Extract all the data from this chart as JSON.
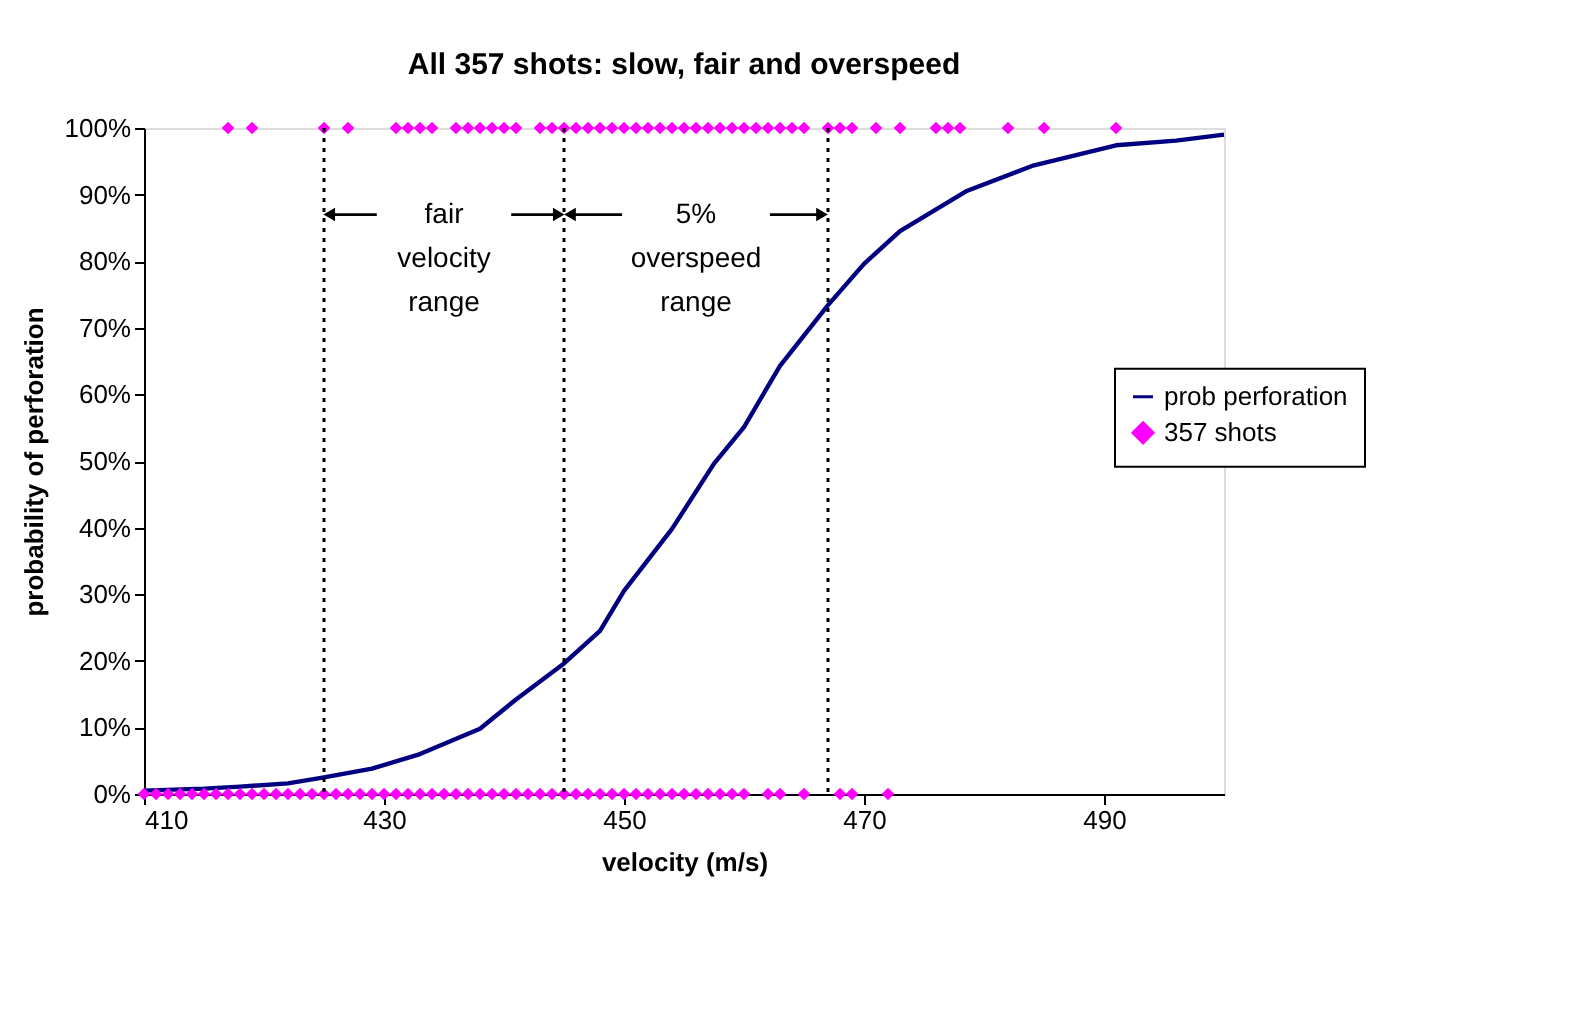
{
  "chart_data": {
    "type": "line",
    "title": "All 357 shots: slow, fair and overspeed",
    "xlabel": "velocity (m/s)",
    "ylabel": "probability of perforation",
    "xlim": [
      410,
      500
    ],
    "xticks": [
      410,
      430,
      450,
      470,
      490
    ],
    "ylim": [
      0,
      100
    ],
    "yticks": [
      {
        "value": 0,
        "label": "0%"
      },
      {
        "value": 10,
        "label": "10%"
      },
      {
        "value": 20,
        "label": "20%"
      },
      {
        "value": 30,
        "label": "30%"
      },
      {
        "value": 40,
        "label": "40%"
      },
      {
        "value": 50,
        "label": "50%"
      },
      {
        "value": 60,
        "label": "60%"
      },
      {
        "value": 70,
        "label": "70%"
      },
      {
        "value": 80,
        "label": "80%"
      },
      {
        "value": 90,
        "label": "90%"
      },
      {
        "value": 100,
        "label": "100%"
      }
    ],
    "grid": false,
    "legend": "right",
    "series": [
      {
        "name": "prob perforation",
        "color": "#000080",
        "marker": "none",
        "line_style": "solid",
        "x": [
          410,
          415,
          418,
          422,
          425,
          429,
          433,
          438,
          441,
          445,
          448,
          450,
          454,
          457.5,
          460,
          463,
          467,
          470,
          473,
          478.5,
          484,
          491,
          496,
          500
        ],
        "values": [
          0.5,
          0.8,
          1.1,
          1.6,
          2.5,
          3.8,
          6.0,
          9.8,
          14.2,
          19.6,
          24.5,
          30.5,
          39.8,
          49.6,
          55.1,
          64.3,
          73.4,
          79.6,
          84.5,
          90.5,
          94.3,
          97.4,
          98.1,
          99.0
        ]
      },
      {
        "name": "357 shots",
        "type": "scatter",
        "color": "#ff00ff",
        "marker": "diamond",
        "x": [
          417,
          419,
          425,
          427,
          431,
          432,
          433,
          434,
          436,
          437,
          438,
          439,
          440,
          441,
          443,
          444,
          445,
          446,
          447,
          448,
          449,
          450,
          451,
          452,
          453,
          454,
          455,
          456,
          457,
          458,
          459,
          460,
          461,
          462,
          463,
          464,
          465,
          467,
          468,
          469,
          471,
          473,
          476,
          477,
          478,
          482,
          485,
          491,
          410,
          411,
          412,
          413,
          414,
          415,
          416,
          417,
          418,
          419,
          420,
          421,
          422,
          423,
          424,
          425,
          426,
          427,
          428,
          429,
          430,
          431,
          432,
          433,
          434,
          435,
          436,
          437,
          438,
          439,
          440,
          441,
          442,
          443,
          444,
          445,
          446,
          447,
          448,
          449,
          450,
          451,
          452,
          453,
          454,
          455,
          456,
          457,
          458,
          459,
          460,
          462,
          463,
          465,
          468,
          469,
          472
        ],
        "values": [
          100,
          100,
          100,
          100,
          100,
          100,
          100,
          100,
          100,
          100,
          100,
          100,
          100,
          100,
          100,
          100,
          100,
          100,
          100,
          100,
          100,
          100,
          100,
          100,
          100,
          100,
          100,
          100,
          100,
          100,
          100,
          100,
          100,
          100,
          100,
          100,
          100,
          100,
          100,
          100,
          100,
          100,
          100,
          100,
          100,
          100,
          100,
          100,
          0,
          0,
          0,
          0,
          0,
          0,
          0,
          0,
          0,
          0,
          0,
          0,
          0,
          0,
          0,
          0,
          0,
          0,
          0,
          0,
          0,
          0,
          0,
          0,
          0,
          0,
          0,
          0,
          0,
          0,
          0,
          0,
          0,
          0,
          0,
          0,
          0,
          0,
          0,
          0,
          0,
          0,
          0,
          0,
          0,
          0,
          0,
          0,
          0,
          0,
          0,
          0,
          0,
          0,
          0,
          0,
          0
        ]
      }
    ],
    "ref_lines": [
      {
        "axis": "x",
        "value": 425,
        "line_style": "dotted",
        "color": "#000000"
      },
      {
        "axis": "x",
        "value": 445,
        "line_style": "dotted",
        "color": "#000000"
      },
      {
        "axis": "x",
        "value": 467,
        "line_style": "dotted",
        "color": "#000000"
      }
    ],
    "annotations": [
      {
        "text": "fair velocity range",
        "x": 425,
        "y": 87
      },
      {
        "text": "5% overspeed range",
        "x": 445,
        "y": 87
      }
    ]
  }
}
